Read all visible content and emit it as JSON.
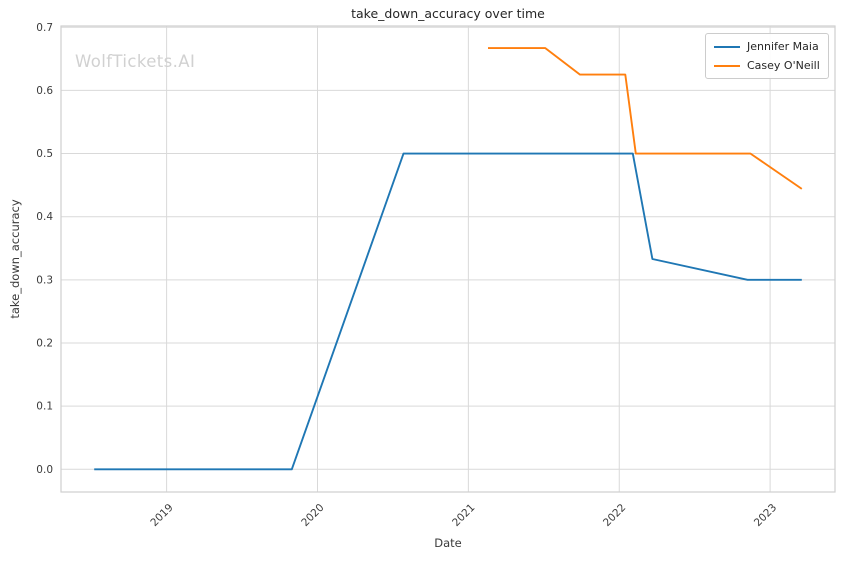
{
  "watermark": {
    "text": "WolfTickets.AI",
    "color": "#d1d1d1"
  },
  "chart_data": {
    "type": "line",
    "title": "take_down_accuracy over time",
    "xlabel": "Date",
    "ylabel": "take_down_accuracy",
    "x_tick_values": [
      2019,
      2020,
      2021,
      2022,
      2023
    ],
    "x_tick_labels": [
      "2019",
      "2020",
      "2021",
      "2022",
      "2023"
    ],
    "y_tick_values": [
      0.0,
      0.1,
      0.2,
      0.3,
      0.4,
      0.5,
      0.6,
      0.7
    ],
    "y_tick_labels": [
      "0.0",
      "0.1",
      "0.2",
      "0.3",
      "0.4",
      "0.5",
      "0.6",
      "0.7"
    ],
    "xlim": [
      2018.3,
      2023.43
    ],
    "ylim": [
      -0.036,
      0.702
    ],
    "grid": true,
    "legend_position": "upper right",
    "series": [
      {
        "name": "Jennifer Maia",
        "color": "#1f77b4",
        "points": [
          [
            2018.52,
            0.0
          ],
          [
            2019.83,
            0.0
          ],
          [
            2020.57,
            0.5
          ],
          [
            2022.09,
            0.5
          ],
          [
            2022.22,
            0.333
          ],
          [
            2022.85,
            0.3
          ],
          [
            2023.21,
            0.3
          ]
        ]
      },
      {
        "name": "Casey O'Neill",
        "color": "#ff7f0e",
        "points": [
          [
            2021.13,
            0.667
          ],
          [
            2021.51,
            0.667
          ],
          [
            2021.74,
            0.625
          ],
          [
            2022.04,
            0.625
          ],
          [
            2022.11,
            0.5
          ],
          [
            2022.87,
            0.5
          ],
          [
            2023.21,
            0.444
          ]
        ]
      }
    ],
    "colors": {
      "grid": "#d9d9d9",
      "plot_border": "#cfcfcf",
      "tick_text": "#3b3b3b",
      "title_text": "#262626"
    }
  }
}
